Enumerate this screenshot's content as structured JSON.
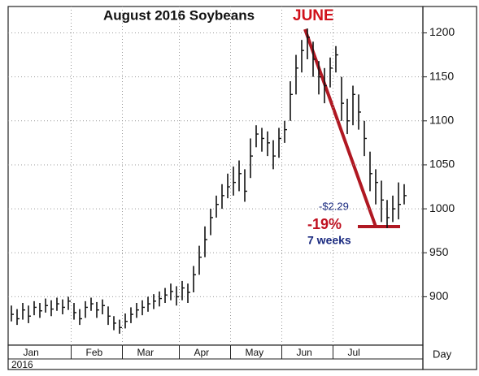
{
  "chart_data": {
    "type": "ohlc",
    "title": "August 2016 Soybeans",
    "categories": [
      "Jan",
      null,
      null,
      null,
      null,
      null,
      null,
      null,
      null,
      null,
      null,
      "Feb",
      null,
      null,
      null,
      null,
      null,
      null,
      null,
      null,
      "Mar",
      null,
      null,
      null,
      null,
      null,
      null,
      null,
      null,
      null,
      "Apr",
      null,
      null,
      null,
      null,
      null,
      null,
      null,
      null,
      "May",
      null,
      null,
      null,
      null,
      null,
      null,
      null,
      null,
      "Jun",
      null,
      null,
      null,
      null,
      null,
      null,
      null,
      null,
      "Jul",
      null,
      null,
      null,
      null,
      null,
      null,
      null,
      null,
      null,
      null,
      null,
      null
    ],
    "high": [
      890,
      886,
      893,
      890,
      895,
      893,
      898,
      896,
      899,
      897,
      900,
      893,
      886,
      895,
      899,
      894,
      897,
      889,
      878,
      874,
      881,
      888,
      893,
      896,
      900,
      903,
      906,
      910,
      915,
      912,
      918,
      915,
      935,
      958,
      980,
      1000,
      1015,
      1028,
      1040,
      1048,
      1055,
      1045,
      1080,
      1095,
      1092,
      1088,
      1078,
      1092,
      1100,
      1145,
      1175,
      1192,
      1205,
      1190,
      1168,
      1160,
      1172,
      1185,
      1150,
      1125,
      1140,
      1130,
      1100,
      1065,
      1045,
      1032,
      1010,
      1015,
      1030,
      1028
    ],
    "low": [
      872,
      868,
      874,
      870,
      879,
      876,
      882,
      878,
      884,
      880,
      885,
      874,
      868,
      876,
      884,
      876,
      880,
      868,
      862,
      858,
      864,
      870,
      876,
      879,
      883,
      886,
      889,
      893,
      896,
      890,
      896,
      893,
      905,
      925,
      945,
      970,
      990,
      1000,
      1012,
      1015,
      1020,
      1008,
      1035,
      1070,
      1065,
      1060,
      1045,
      1058,
      1075,
      1100,
      1130,
      1155,
      1170,
      1150,
      1130,
      1120,
      1138,
      1155,
      1100,
      1085,
      1095,
      1090,
      1060,
      1020,
      1005,
      985,
      978,
      985,
      988,
      1005
    ],
    "close": [
      880,
      875,
      885,
      878,
      888,
      884,
      890,
      886,
      892,
      888,
      895,
      882,
      875,
      888,
      892,
      885,
      890,
      878,
      870,
      865,
      872,
      880,
      885,
      888,
      892,
      895,
      898,
      902,
      906,
      900,
      910,
      905,
      925,
      945,
      965,
      990,
      1005,
      1015,
      1025,
      1030,
      1040,
      1020,
      1060,
      1085,
      1080,
      1075,
      1060,
      1080,
      1090,
      1130,
      1160,
      1180,
      1195,
      1170,
      1150,
      1140,
      1160,
      1175,
      1120,
      1100,
      1130,
      1110,
      1080,
      1040,
      1030,
      1010,
      990,
      1000,
      1005,
      1015
    ],
    "color": "#111111",
    "ylim": [
      845,
      1230
    ],
    "yticks": [
      900,
      950,
      1000,
      1050,
      1100,
      1150,
      1200
    ],
    "grid": true,
    "x_axis_unit": "Day",
    "year_label": "2016",
    "annotations": {
      "month": "JUNE",
      "change": "-$2.29",
      "percent": "-19%",
      "duration": "7 weeks"
    }
  }
}
